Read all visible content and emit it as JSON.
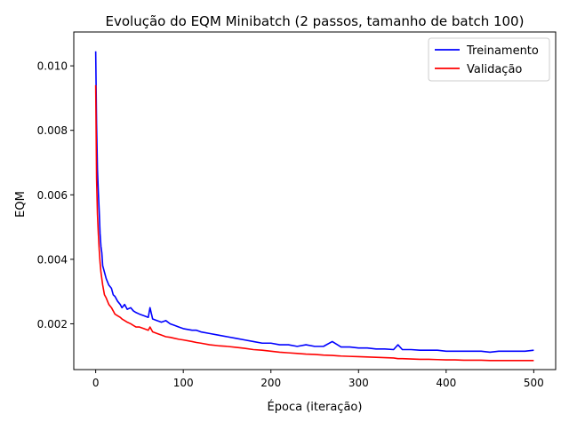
{
  "chart_data": {
    "type": "line",
    "title": "Evolução do EQM Minibatch (2 passos, tamanho de batch 100)",
    "xlabel": "Época (iteração)",
    "ylabel": "EQM",
    "xlim": [
      -25,
      525
    ],
    "ylim": [
      0.00058,
      0.01105
    ],
    "x_ticks": [
      0,
      100,
      200,
      300,
      400,
      500
    ],
    "x_tick_labels": [
      "0",
      "100",
      "200",
      "300",
      "400",
      "500"
    ],
    "y_ticks": [
      0.002,
      0.004,
      0.006,
      0.008,
      0.01
    ],
    "y_tick_labels": [
      "0.002",
      "0.004",
      "0.006",
      "0.008",
      "0.010"
    ],
    "grid": false,
    "legend_position": "upper right",
    "series": [
      {
        "name": "Treinamento",
        "color": "#0000ff",
        "x": [
          0,
          1,
          2,
          3,
          4,
          5,
          6,
          7,
          8,
          10,
          12,
          15,
          18,
          20,
          22,
          25,
          28,
          30,
          33,
          36,
          40,
          43,
          46,
          50,
          55,
          60,
          62,
          65,
          70,
          75,
          80,
          85,
          90,
          95,
          100,
          110,
          115,
          120,
          130,
          140,
          150,
          160,
          170,
          180,
          190,
          200,
          210,
          220,
          230,
          240,
          250,
          260,
          270,
          280,
          290,
          300,
          310,
          320,
          330,
          340,
          345,
          350,
          360,
          370,
          380,
          390,
          400,
          410,
          420,
          430,
          440,
          450,
          460,
          470,
          480,
          490,
          500
        ],
        "y": [
          0.01045,
          0.0082,
          0.0068,
          0.0061,
          0.0055,
          0.0048,
          0.0044,
          0.0042,
          0.0038,
          0.0036,
          0.0034,
          0.0032,
          0.0031,
          0.0029,
          0.00285,
          0.0027,
          0.0026,
          0.0025,
          0.0026,
          0.00245,
          0.0025,
          0.0024,
          0.00235,
          0.0023,
          0.00225,
          0.0022,
          0.0025,
          0.00215,
          0.0021,
          0.00205,
          0.0021,
          0.002,
          0.00195,
          0.0019,
          0.00185,
          0.0018,
          0.0018,
          0.00175,
          0.0017,
          0.00165,
          0.0016,
          0.00155,
          0.0015,
          0.00145,
          0.0014,
          0.0014,
          0.00135,
          0.00135,
          0.0013,
          0.00135,
          0.0013,
          0.0013,
          0.00145,
          0.00128,
          0.00128,
          0.00125,
          0.00125,
          0.00122,
          0.00122,
          0.0012,
          0.00135,
          0.0012,
          0.0012,
          0.00118,
          0.00118,
          0.00118,
          0.00115,
          0.00115,
          0.00115,
          0.00115,
          0.00115,
          0.00112,
          0.00115,
          0.00115,
          0.00115,
          0.00115,
          0.00118
        ]
      },
      {
        "name": "Validação",
        "color": "#ff0000",
        "x": [
          0,
          1,
          2,
          3,
          4,
          5,
          6,
          7,
          8,
          10,
          12,
          15,
          18,
          20,
          22,
          25,
          28,
          30,
          33,
          36,
          40,
          43,
          46,
          50,
          55,
          60,
          62,
          65,
          70,
          75,
          80,
          85,
          90,
          95,
          100,
          110,
          115,
          120,
          130,
          140,
          150,
          160,
          170,
          180,
          190,
          200,
          210,
          220,
          230,
          240,
          250,
          260,
          270,
          280,
          290,
          300,
          310,
          320,
          330,
          340,
          345,
          350,
          360,
          370,
          380,
          390,
          400,
          410,
          420,
          430,
          440,
          450,
          460,
          470,
          480,
          490,
          500
        ],
        "y": [
          0.0094,
          0.0065,
          0.0054,
          0.0048,
          0.0043,
          0.0039,
          0.0036,
          0.0034,
          0.0032,
          0.0029,
          0.0028,
          0.0026,
          0.0025,
          0.0024,
          0.0023,
          0.00225,
          0.0022,
          0.00215,
          0.0021,
          0.00205,
          0.002,
          0.00195,
          0.0019,
          0.0019,
          0.00185,
          0.0018,
          0.0019,
          0.00175,
          0.0017,
          0.00165,
          0.0016,
          0.00158,
          0.00155,
          0.00152,
          0.0015,
          0.00145,
          0.00142,
          0.0014,
          0.00135,
          0.00132,
          0.0013,
          0.00127,
          0.00124,
          0.0012,
          0.00118,
          0.00115,
          0.00112,
          0.0011,
          0.00108,
          0.00106,
          0.00105,
          0.00103,
          0.00102,
          0.001,
          0.00099,
          0.00098,
          0.00097,
          0.00096,
          0.00095,
          0.00094,
          0.00092,
          0.00092,
          0.00091,
          0.0009,
          0.0009,
          0.00089,
          0.00088,
          0.00088,
          0.00087,
          0.00087,
          0.00087,
          0.00086,
          0.00086,
          0.00086,
          0.00086,
          0.00086,
          0.00086
        ]
      }
    ]
  }
}
